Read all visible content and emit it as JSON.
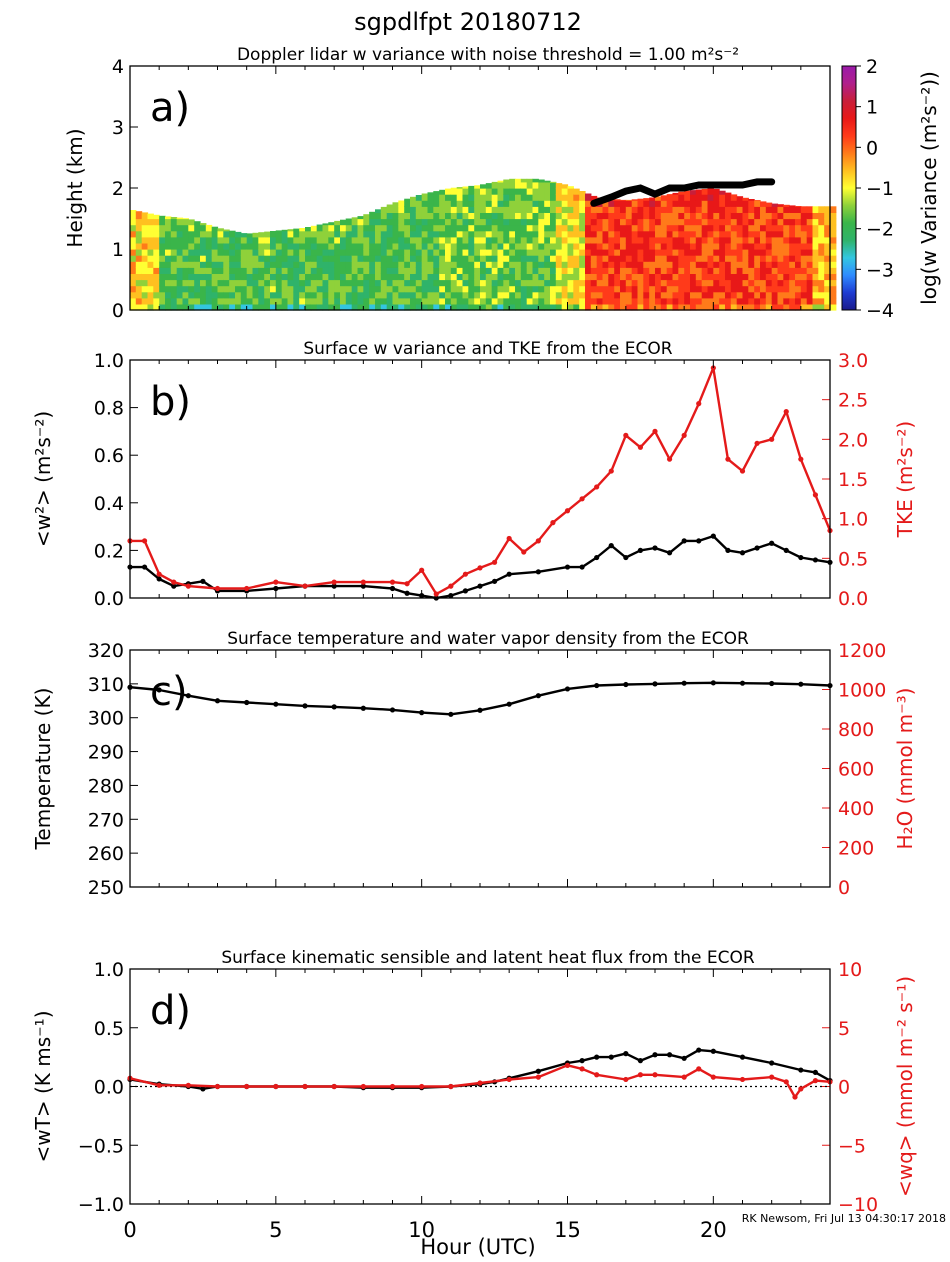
{
  "figure": {
    "title": "sgpdlfpt 20180712",
    "credit": "RK Newsom, Fri Jul 13 04:30:17 2018",
    "xlabel": "Hour (UTC)",
    "xticks": [
      "0",
      "5",
      "10",
      "15",
      "20"
    ],
    "xlim": [
      0,
      24
    ]
  },
  "chart_data": [
    {
      "id": "a",
      "type": "heatmap",
      "panel_label": "a)",
      "title": "Doppler lidar w variance with noise threshold = 1.00 m²s⁻²",
      "ylabel": "Height (km)",
      "ylim": [
        0,
        4
      ],
      "yticks": [
        0,
        1,
        2,
        3,
        4
      ],
      "colorbar": {
        "label": "log(w Variance (m²s⁻²))",
        "range": [
          -4,
          2
        ],
        "ticks": [
          "2",
          "1",
          "0",
          "−1",
          "−2",
          "−3",
          "−4"
        ],
        "colors": [
          "#1a1a8c",
          "#1e3cd2",
          "#2f8cff",
          "#33c6e0",
          "#2fb36a",
          "#3ab54a",
          "#8fd13a",
          "#ffff33",
          "#ffc020",
          "#ff7a1a",
          "#ff3a1a",
          "#e81818",
          "#c81f3a",
          "#b01f8c",
          "#9a1aaa"
        ]
      },
      "top_profile": {
        "hour": [
          0,
          0.5,
          1,
          2,
          3,
          4,
          5,
          6,
          7,
          8,
          9,
          10,
          11,
          12,
          13,
          14,
          15,
          16,
          17,
          18,
          19,
          20,
          21,
          22,
          23,
          24
        ],
        "height_km": [
          1.65,
          1.6,
          1.55,
          1.5,
          1.35,
          1.25,
          1.3,
          1.35,
          1.45,
          1.55,
          1.75,
          1.9,
          2.0,
          2.05,
          2.15,
          2.15,
          2.05,
          1.85,
          1.8,
          1.85,
          1.95,
          2.0,
          1.85,
          1.75,
          1.7,
          1.7
        ]
      },
      "mixed_layer_top": {
        "hour": [
          15.9,
          16.5,
          17,
          17.5,
          18,
          18.5,
          19,
          19.5,
          20,
          20.5,
          21,
          21.5,
          22
        ],
        "height_km": [
          1.75,
          1.85,
          1.95,
          2.0,
          1.9,
          2.0,
          2.0,
          2.05,
          2.05,
          2.05,
          2.05,
          2.1,
          2.1
        ]
      },
      "regimes": [
        {
          "hours": [
            0,
            1
          ],
          "log_variance": -0.8
        },
        {
          "hours": [
            1,
            10.5
          ],
          "log_variance": -1.8
        },
        {
          "hours": [
            10.5,
            14.5
          ],
          "log_variance": -1.6
        },
        {
          "hours": [
            14.5,
            15.5
          ],
          "log_variance": -1.0
        },
        {
          "hours": [
            15.5,
            23.2
          ],
          "log_variance": 0.3
        },
        {
          "hours": [
            23.2,
            24
          ],
          "log_variance": -0.6
        }
      ]
    },
    {
      "id": "b",
      "type": "line",
      "panel_label": "b)",
      "title": "Surface w variance and TKE from the ECOR",
      "ylabel": "<w²> (m²s⁻²)",
      "ylim": [
        0,
        1
      ],
      "yticks": [
        "0.0",
        "0.2",
        "0.4",
        "0.6",
        "0.8",
        "1.0"
      ],
      "y2label": "TKE (m²s⁻²)",
      "y2lim": [
        0,
        3
      ],
      "y2ticks": [
        "0.0",
        "0.5",
        "1.0",
        "1.5",
        "2.0",
        "2.5",
        "3.0"
      ],
      "series": [
        {
          "name": "<w²>",
          "color": "#000000",
          "axis": "left",
          "x": [
            0,
            0.5,
            1,
            1.5,
            2,
            2.5,
            3,
            4,
            5,
            6,
            7,
            8,
            9,
            9.5,
            10,
            10.5,
            11,
            11.5,
            12,
            12.5,
            13,
            14,
            15,
            15.5,
            16,
            16.5,
            17,
            17.5,
            18,
            18.5,
            19,
            19.5,
            20,
            20.5,
            21,
            21.5,
            22,
            22.5,
            23,
            23.5,
            24
          ],
          "y": [
            0.13,
            0.13,
            0.08,
            0.05,
            0.06,
            0.07,
            0.03,
            0.03,
            0.04,
            0.05,
            0.05,
            0.05,
            0.04,
            0.02,
            0.01,
            0.0,
            0.01,
            0.03,
            0.05,
            0.07,
            0.1,
            0.11,
            0.13,
            0.13,
            0.17,
            0.22,
            0.17,
            0.2,
            0.21,
            0.19,
            0.24,
            0.24,
            0.26,
            0.2,
            0.19,
            0.21,
            0.23,
            0.2,
            0.17,
            0.16,
            0.15
          ]
        },
        {
          "name": "TKE",
          "color": "#e41a1a",
          "axis": "right",
          "x": [
            0,
            0.5,
            1,
            1.5,
            2,
            3,
            4,
            5,
            6,
            7,
            8,
            9,
            9.5,
            10,
            10.5,
            11,
            11.5,
            12,
            12.5,
            13,
            13.5,
            14,
            14.5,
            15,
            15.5,
            16,
            16.5,
            17,
            17.5,
            18,
            18.5,
            19,
            19.5,
            20,
            20.5,
            21,
            21.5,
            22,
            22.5,
            23,
            23.5,
            24
          ],
          "y": [
            0.72,
            0.72,
            0.3,
            0.2,
            0.15,
            0.12,
            0.12,
            0.2,
            0.15,
            0.2,
            0.2,
            0.2,
            0.18,
            0.35,
            0.05,
            0.15,
            0.3,
            0.38,
            0.45,
            0.75,
            0.58,
            0.72,
            0.95,
            1.1,
            1.25,
            1.4,
            1.6,
            2.05,
            1.9,
            2.1,
            1.75,
            2.05,
            2.45,
            2.9,
            1.75,
            1.6,
            1.95,
            2.0,
            2.35,
            1.75,
            1.3,
            0.85
          ]
        }
      ]
    },
    {
      "id": "c",
      "type": "line",
      "panel_label": "c)",
      "title": "Surface temperature and water vapor density from the ECOR",
      "ylabel": "Temperature (K)",
      "ylim": [
        250,
        320
      ],
      "yticks": [
        "250",
        "260",
        "270",
        "280",
        "290",
        "300",
        "310",
        "320"
      ],
      "y2label": "H₂O (mmol m⁻³)",
      "y2lim": [
        0,
        1200
      ],
      "y2ticks": [
        "0",
        "200",
        "400",
        "600",
        "800",
        "1000",
        "1200"
      ],
      "series": [
        {
          "name": "Temperature",
          "color": "#000000",
          "axis": "left",
          "x": [
            0,
            1,
            2,
            3,
            4,
            5,
            6,
            7,
            8,
            9,
            10,
            11,
            12,
            13,
            14,
            15,
            16,
            17,
            18,
            19,
            20,
            21,
            22,
            23,
            24
          ],
          "y": [
            309,
            308.2,
            306.5,
            305,
            304.5,
            304,
            303.5,
            303.2,
            302.8,
            302.3,
            301.5,
            301,
            302.2,
            304,
            306.5,
            308.5,
            309.5,
            309.8,
            310,
            310.2,
            310.3,
            310.2,
            310.1,
            309.9,
            309.5
          ]
        }
      ]
    },
    {
      "id": "d",
      "type": "line",
      "panel_label": "d)",
      "title": "Surface kinematic sensible and latent heat flux from the ECOR",
      "ylabel": "<wT> (K ms⁻¹)",
      "ylim": [
        -1,
        1
      ],
      "yticks": [
        "−1.0",
        "−0.5",
        "0.0",
        "0.5",
        "1.0"
      ],
      "y2label": "<wq> (mmol m⁻² s⁻¹)",
      "y2lim": [
        -10,
        10
      ],
      "y2ticks": [
        "−10",
        "−5",
        "0",
        "5",
        "10"
      ],
      "series": [
        {
          "name": "<wT>",
          "color": "#000000",
          "axis": "left",
          "x": [
            0,
            1,
            2,
            2.5,
            3,
            4,
            5,
            6,
            7,
            8,
            9,
            10,
            11,
            12,
            12.5,
            13,
            14,
            15,
            15.5,
            16,
            16.5,
            17,
            17.5,
            18,
            18.5,
            19,
            19.5,
            20,
            21,
            22,
            23,
            23.5,
            24
          ],
          "y": [
            0.06,
            0.02,
            0.0,
            -0.02,
            0.0,
            0.0,
            0.0,
            0.0,
            0.0,
            -0.01,
            -0.01,
            -0.01,
            0.0,
            0.02,
            0.04,
            0.07,
            0.13,
            0.2,
            0.22,
            0.25,
            0.25,
            0.28,
            0.22,
            0.27,
            0.27,
            0.24,
            0.31,
            0.3,
            0.25,
            0.2,
            0.14,
            0.12,
            0.05
          ]
        },
        {
          "name": "<wq>",
          "color": "#e41a1a",
          "axis": "right",
          "x": [
            0,
            1,
            2,
            3,
            4,
            5,
            6,
            7,
            8,
            9,
            10,
            11,
            12,
            13,
            14,
            15,
            15.5,
            16,
            17,
            17.5,
            18,
            19,
            19.5,
            20,
            21,
            22,
            22.5,
            22.8,
            23,
            23.5,
            24
          ],
          "y": [
            0.7,
            0.1,
            0.1,
            0.0,
            0.0,
            0.0,
            0.0,
            0.0,
            0.0,
            0.0,
            0.0,
            0.0,
            0.3,
            0.6,
            0.8,
            1.8,
            1.5,
            1.0,
            0.6,
            1.0,
            1.0,
            0.8,
            1.5,
            0.8,
            0.6,
            0.8,
            0.4,
            -0.9,
            -0.2,
            0.5,
            0.4
          ]
        }
      ],
      "zero_line": true
    }
  ]
}
